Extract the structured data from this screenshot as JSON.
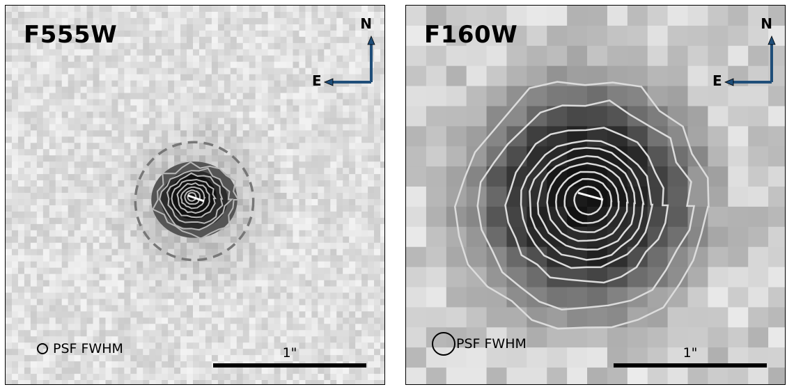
{
  "panels": [
    {
      "filter_label": "F555W",
      "compass": {
        "north_label": "N",
        "east_label": "E",
        "arrow_color": "#1f4e79"
      },
      "psf_label": "PSF FWHM",
      "scale_label": "1\"",
      "contour_color": "#b8b8b8",
      "aperture_color": "#777777"
    },
    {
      "filter_label": "F160W",
      "compass": {
        "north_label": "N",
        "east_label": "E",
        "arrow_color": "#1f4e79"
      },
      "psf_label": "PSF FWHM",
      "scale_label": "1\"",
      "contour_color": "#dcdcdc"
    }
  ]
}
